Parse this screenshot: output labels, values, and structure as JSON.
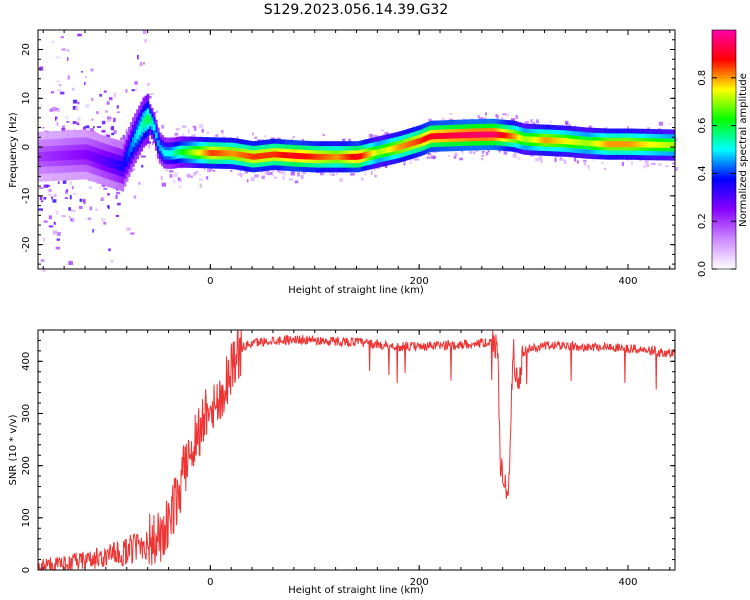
{
  "title": "S129.2023.056.14.39.G32",
  "chart_data": [
    {
      "type": "heatmap",
      "xlabel": "Height of straight line (km)",
      "ylabel": "Frequency (Hz)",
      "xlim": [
        -165,
        445
      ],
      "ylim": [
        -25,
        24
      ],
      "xticks": [
        0,
        200,
        400
      ],
      "yticks": [
        -20,
        -10,
        0,
        10,
        20
      ],
      "colorbar": {
        "label": "Normalized spectral amplitude",
        "range": [
          0,
          1
        ],
        "ticks": [
          "0.0",
          "0.2",
          "0.4",
          "0.6",
          "0.8"
        ],
        "tick_values": [
          0,
          0.2,
          0.4,
          0.6,
          0.8
        ],
        "colormap": [
          "#ffffff",
          "#cc88ff",
          "#8800ff",
          "#0000ff",
          "#00ffff",
          "#00ff00",
          "#ffff00",
          "#ff0000",
          "#ff00aa"
        ]
      },
      "ridge": {
        "x": [
          -165,
          -120,
          -100,
          -85,
          -75,
          -65,
          -60,
          -55,
          -50,
          -45,
          -40,
          -35,
          -30,
          0,
          20,
          40,
          60,
          80,
          100,
          120,
          140,
          160,
          180,
          200,
          210,
          250,
          270,
          290,
          300,
          320,
          340,
          360,
          380,
          400,
          420,
          445
        ],
        "freq": [
          -2,
          -1.5,
          -3,
          -4,
          1,
          5,
          6,
          4,
          0,
          -1.2,
          -1.3,
          -1.2,
          -1,
          -1.2,
          -1.3,
          -2,
          -1.5,
          -1.8,
          -2,
          -2,
          -2,
          -1,
          0,
          1.3,
          2.2,
          2.5,
          2.6,
          2.2,
          1.6,
          1.4,
          1.2,
          0.8,
          0.6,
          0.6,
          0.5,
          0.4
        ],
        "amplitude": [
          0.2,
          0.25,
          0.3,
          0.35,
          0.45,
          0.55,
          0.6,
          0.5,
          0.45,
          0.5,
          0.5,
          0.55,
          0.6,
          0.85,
          0.8,
          0.85,
          0.85,
          0.9,
          0.85,
          0.8,
          0.9,
          0.7,
          0.8,
          0.85,
          0.9,
          0.95,
          0.95,
          0.8,
          0.7,
          0.8,
          0.75,
          0.7,
          0.8,
          0.8,
          0.75,
          0.7
        ]
      }
    },
    {
      "type": "line",
      "xlabel": "Height of straight line (km)",
      "ylabel": "SNR (10 * v/v)",
      "xlim": [
        -165,
        445
      ],
      "ylim": [
        0,
        460
      ],
      "xticks": [
        0,
        200,
        400
      ],
      "yticks": [
        0,
        100,
        200,
        300,
        400
      ],
      "series": [
        {
          "color": "#ee3333",
          "x": [
            -165,
            -140,
            -120,
            -100,
            -80,
            -60,
            -45,
            -40,
            -35,
            -30,
            -25,
            -20,
            -15,
            -10,
            -5,
            0,
            5,
            10,
            15,
            20,
            25,
            30,
            40,
            60,
            80,
            100,
            120,
            140,
            160,
            180,
            200,
            220,
            240,
            260,
            270,
            275,
            278,
            280,
            283,
            286,
            290,
            295,
            300,
            320,
            340,
            360,
            380,
            400,
            420,
            445
          ],
          "y": [
            8,
            12,
            18,
            25,
            35,
            55,
            60,
            90,
            120,
            150,
            190,
            230,
            250,
            270,
            300,
            330,
            310,
            330,
            360,
            390,
            410,
            425,
            435,
            440,
            442,
            440,
            438,
            437,
            432,
            428,
            428,
            430,
            432,
            435,
            436,
            430,
            200,
            170,
            160,
            175,
            420,
            350,
            420,
            430,
            430,
            428,
            428,
            425,
            420,
            415
          ]
        }
      ]
    }
  ]
}
